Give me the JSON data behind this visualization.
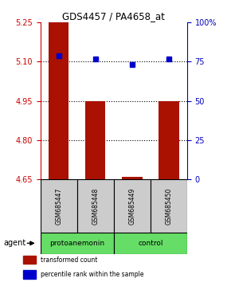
{
  "title": "GDS4457 / PA4658_at",
  "samples": [
    "GSM685447",
    "GSM685448",
    "GSM685449",
    "GSM685450"
  ],
  "bar_bottoms": [
    4.65,
    4.65,
    4.65,
    4.65
  ],
  "bar_tops": [
    5.25,
    4.95,
    4.658,
    4.95
  ],
  "percentile_values": [
    79,
    77,
    73,
    77
  ],
  "ylim_left": [
    4.65,
    5.25
  ],
  "ylim_right": [
    0,
    100
  ],
  "yticks_left": [
    4.65,
    4.8,
    4.95,
    5.1,
    5.25
  ],
  "yticks_right": [
    0,
    25,
    50,
    75,
    100
  ],
  "bar_color": "#aa1100",
  "dot_color": "#0000cc",
  "bar_width": 0.55,
  "group_ranges": [
    [
      0,
      1
    ],
    [
      2,
      3
    ]
  ],
  "group_labels": [
    "protoanemonin",
    "control"
  ],
  "group_colors": [
    "#66dd66",
    "#66dd66"
  ],
  "agent_label": "agent",
  "legend_items": [
    {
      "label": "transformed count",
      "color": "#aa1100"
    },
    {
      "label": "percentile rank within the sample",
      "color": "#0000cc"
    }
  ],
  "sample_box_color": "#cccccc",
  "left_axis_color": "#cc0000",
  "right_axis_color": "#0000bb"
}
